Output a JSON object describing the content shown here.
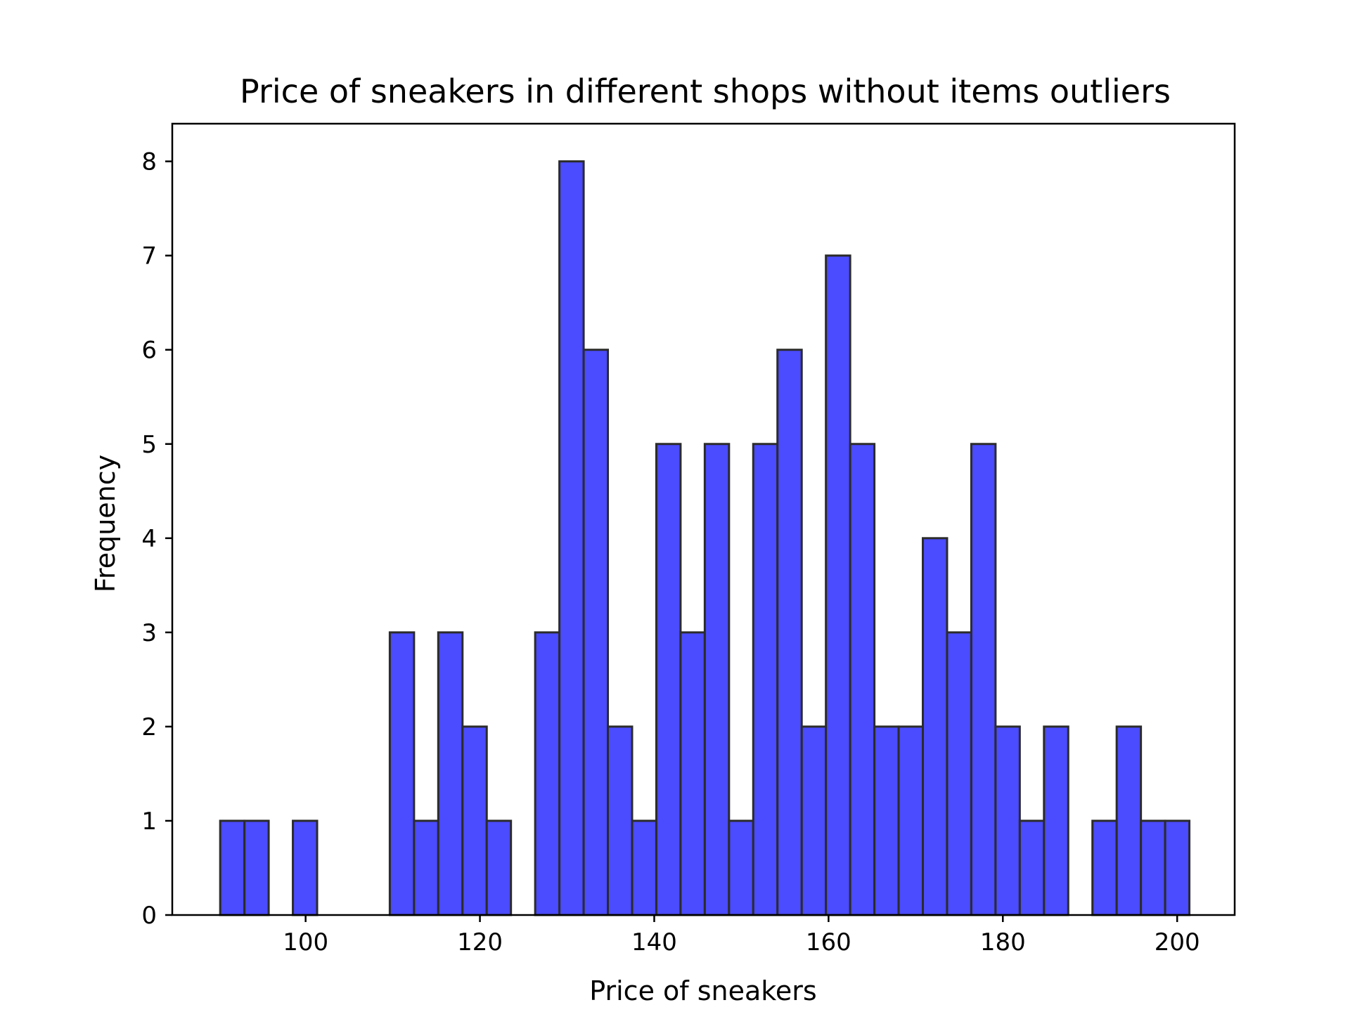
{
  "chart_data": {
    "type": "bar",
    "title": "Price of sneakers in different shops without items outliers",
    "xlabel": "Price of sneakers",
    "ylabel": "Frequency",
    "xlim": [
      84.7,
      206.6
    ],
    "ylim": [
      0,
      8.4
    ],
    "xticks": [
      100,
      120,
      140,
      160,
      180,
      200
    ],
    "yticks": [
      0,
      1,
      2,
      3,
      4,
      5,
      6,
      7,
      8
    ],
    "bin_start": 90.2,
    "bin_width": 2.78,
    "values": [
      1,
      1,
      0,
      1,
      0,
      0,
      0,
      3,
      1,
      3,
      2,
      1,
      0,
      3,
      8,
      6,
      2,
      1,
      5,
      3,
      5,
      1,
      5,
      6,
      2,
      7,
      5,
      2,
      2,
      4,
      3,
      5,
      2,
      1,
      2,
      0,
      1,
      2,
      1,
      1
    ],
    "bar_color": "#4b4bff",
    "edge_color": "#2b2b2b",
    "grid": false,
    "legend": "none"
  }
}
